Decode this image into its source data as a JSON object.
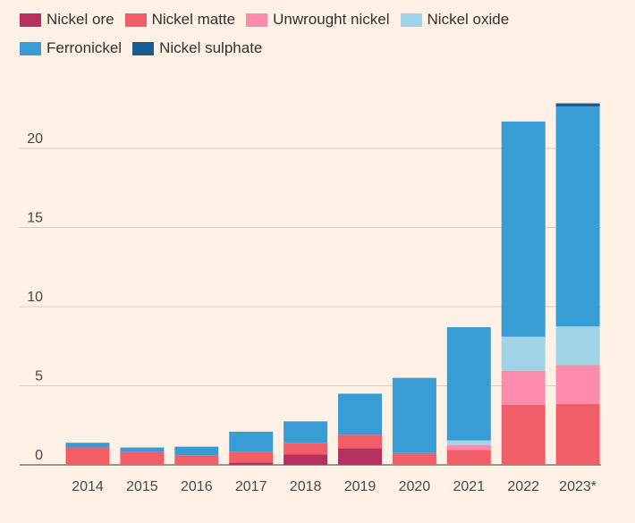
{
  "chart_data": {
    "type": "bar",
    "stacked": true,
    "title": "",
    "xlabel": "",
    "ylabel": "",
    "ylim": [
      0,
      23
    ],
    "yticks": [
      0,
      5,
      10,
      15,
      20
    ],
    "grid": true,
    "legend_position": "top-left",
    "categories": [
      "2014",
      "2015",
      "2016",
      "2017",
      "2018",
      "2019",
      "2020",
      "2021",
      "2022",
      "2023*"
    ],
    "series": [
      {
        "name": "Nickel ore",
        "color": "#b5305e",
        "values": [
          0,
          0,
          0,
          0.15,
          0.65,
          1.05,
          0,
          0,
          0,
          0
        ]
      },
      {
        "name": "Nickel matte",
        "color": "#f25e68",
        "values": [
          1.1,
          0.8,
          0.6,
          0.65,
          0.75,
          0.85,
          0.75,
          0.95,
          3.8,
          3.85
        ]
      },
      {
        "name": "Unwrought nickel",
        "color": "#fd8bab",
        "values": [
          0,
          0,
          0,
          0,
          0,
          0,
          0,
          0.3,
          2.15,
          2.45
        ]
      },
      {
        "name": "Nickel oxide",
        "color": "#9fd3e6",
        "values": [
          0,
          0,
          0,
          0,
          0,
          0,
          0,
          0.3,
          2.15,
          2.45
        ]
      },
      {
        "name": "Ferronickel",
        "color": "#3a9cd4",
        "values": [
          0.3,
          0.3,
          0.55,
          1.3,
          1.35,
          2.6,
          4.75,
          7.15,
          13.6,
          13.9
        ]
      },
      {
        "name": "Nickel sulphate",
        "color": "#1d5a93",
        "values": [
          0,
          0,
          0,
          0,
          0,
          0,
          0,
          0,
          0,
          0.2
        ]
      }
    ]
  }
}
